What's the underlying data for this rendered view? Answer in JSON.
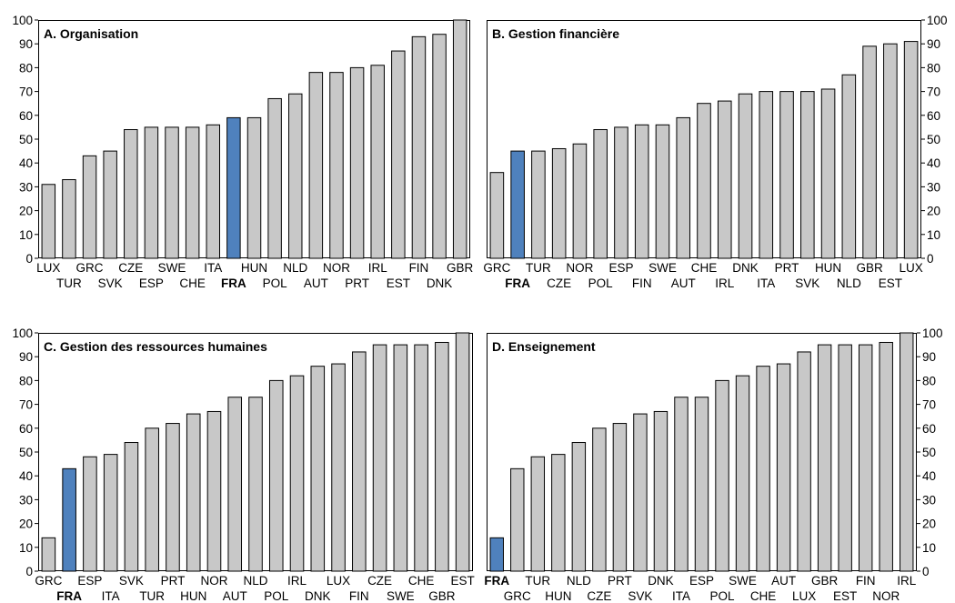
{
  "chart_data": [
    {
      "type": "bar",
      "title": "A. Organisation",
      "categories": [
        "LUX",
        "TUR",
        "GRC",
        "SVK",
        "CZE",
        "ESP",
        "SWE",
        "CHE",
        "ITA",
        "FRA",
        "HUN",
        "POL",
        "NLD",
        "AUT",
        "NOR",
        "PRT",
        "IRL",
        "EST",
        "FIN",
        "DNK",
        "GBR"
      ],
      "values": [
        31,
        33,
        43,
        45,
        54,
        55,
        55,
        55,
        56,
        59,
        59,
        67,
        69,
        78,
        78,
        80,
        81,
        87,
        93,
        94,
        100
      ],
      "highlight": "FRA",
      "ylim": [
        0,
        100
      ],
      "yticks": [
        "0",
        "10",
        "20",
        "30",
        "40",
        "50",
        "60",
        "70",
        "80",
        "90",
        "100"
      ],
      "ytick_side": "left",
      "colors": {
        "bar": "#c8c8c8",
        "highlight": "#4f81bd",
        "outline": "#000000"
      }
    },
    {
      "type": "bar",
      "title": "B. Gestion financière",
      "categories": [
        "GRC",
        "FRA",
        "TUR",
        "CZE",
        "NOR",
        "POL",
        "ESP",
        "FIN",
        "SWE",
        "AUT",
        "CHE",
        "IRL",
        "DNK",
        "ITA",
        "PRT",
        "SVK",
        "HUN",
        "NLD",
        "GBR",
        "EST",
        "LUX"
      ],
      "values": [
        36,
        45,
        45,
        46,
        48,
        54,
        55,
        56,
        56,
        59,
        65,
        66,
        69,
        70,
        70,
        70,
        71,
        77,
        89,
        90,
        91
      ],
      "highlight": "FRA",
      "ylim": [
        0,
        100
      ],
      "yticks": [
        "0",
        "10",
        "20",
        "30",
        "40",
        "50",
        "60",
        "70",
        "80",
        "90",
        "100"
      ],
      "ytick_side": "right",
      "colors": {
        "bar": "#c8c8c8",
        "highlight": "#4f81bd",
        "outline": "#000000"
      }
    },
    {
      "type": "bar",
      "title": "C. Gestion des ressources humaines",
      "categories": [
        "GRC",
        "FRA",
        "ESP",
        "ITA",
        "SVK",
        "TUR",
        "PRT",
        "HUN",
        "NOR",
        "AUT",
        "NLD",
        "POL",
        "IRL",
        "DNK",
        "LUX",
        "FIN",
        "CZE",
        "SWE",
        "CHE",
        "GBR",
        "EST"
      ],
      "values": [
        14,
        43,
        48,
        49,
        54,
        60,
        62,
        66,
        67,
        73,
        73,
        80,
        82,
        86,
        87,
        92,
        95,
        95,
        95,
        96,
        100
      ],
      "highlight": "FRA",
      "ylim": [
        0,
        100
      ],
      "yticks": [
        "0",
        "10",
        "20",
        "30",
        "40",
        "50",
        "60",
        "70",
        "80",
        "90",
        "100"
      ],
      "ytick_side": "left",
      "colors": {
        "bar": "#c8c8c8",
        "highlight": "#4f81bd",
        "outline": "#000000"
      }
    },
    {
      "type": "bar",
      "title": "D. Enseignement",
      "categories": [
        "FRA",
        "GRC",
        "TUR",
        "HUN",
        "NLD",
        "CZE",
        "PRT",
        "SVK",
        "DNK",
        "ITA",
        "ESP",
        "POL",
        "SWE",
        "CHE",
        "AUT",
        "LUX",
        "GBR",
        "EST",
        "FIN",
        "NOR",
        "IRL"
      ],
      "values": [
        14,
        43,
        48,
        49,
        54,
        60,
        62,
        66,
        67,
        73,
        73,
        80,
        82,
        86,
        87,
        92,
        95,
        95,
        95,
        96,
        100
      ],
      "highlight": "FRA",
      "ylim": [
        0,
        100
      ],
      "yticks": [
        "0",
        "10",
        "20",
        "30",
        "40",
        "50",
        "60",
        "70",
        "80",
        "90",
        "100"
      ],
      "ytick_side": "right",
      "colors": {
        "bar": "#c8c8c8",
        "highlight": "#4f81bd",
        "outline": "#000000"
      }
    }
  ]
}
